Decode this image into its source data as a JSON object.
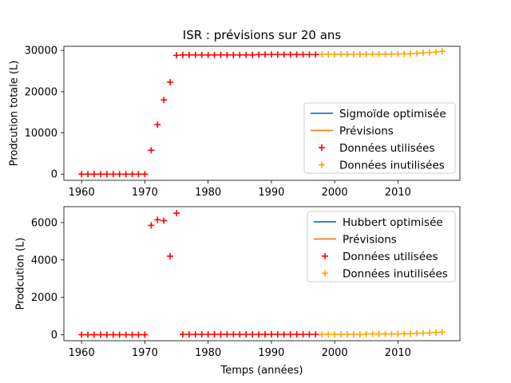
{
  "chart_data": [
    {
      "type": "scatter",
      "title": "ISR : prévisions sur 20 ans",
      "xlabel": "",
      "ylabel": "Prodcution totale (L)",
      "xlim": [
        1957.2,
        2019.8
      ],
      "ylim": [
        -1500,
        31000
      ],
      "xticks": [
        1960,
        1970,
        1980,
        1990,
        2000,
        2010
      ],
      "yticks": [
        0,
        10000,
        20000,
        30000
      ],
      "legend_position": "lower-right",
      "legend": [
        {
          "label": "Sigmoïde optimisée",
          "kind": "line",
          "color": "#1f77b4"
        },
        {
          "label": "Prévisions",
          "kind": "line",
          "color": "#ff7f0e"
        },
        {
          "label": "Données utilisées",
          "kind": "marker",
          "color": "#ff0000"
        },
        {
          "label": "Données inutilisées",
          "kind": "marker",
          "color": "#ffa500"
        }
      ],
      "series": [
        {
          "name": "Données utilisées",
          "color": "#ff0000",
          "x": [
            1960,
            1961,
            1962,
            1963,
            1964,
            1965,
            1966,
            1967,
            1968,
            1969,
            1970,
            1971,
            1972,
            1973,
            1974,
            1975,
            1976,
            1977,
            1978,
            1979,
            1980,
            1981,
            1982,
            1983,
            1984,
            1985,
            1986,
            1987,
            1988,
            1989,
            1990,
            1991,
            1992,
            1993,
            1994,
            1995,
            1996,
            1997
          ],
          "y": [
            0,
            0,
            0,
            0,
            0,
            0,
            0,
            0,
            0,
            0,
            0,
            5800,
            12000,
            18000,
            22300,
            28800,
            28900,
            28900,
            28900,
            28900,
            28900,
            28900,
            28900,
            28900,
            28900,
            28900,
            28900,
            28900,
            29000,
            29000,
            29000,
            29000,
            29000,
            29000,
            29000,
            29000,
            29000,
            29000
          ]
        },
        {
          "name": "Données inutilisées",
          "color": "#ffa500",
          "x": [
            1998,
            1999,
            2000,
            2001,
            2002,
            2003,
            2004,
            2005,
            2006,
            2007,
            2008,
            2009,
            2010,
            2011,
            2012,
            2013,
            2014,
            2015,
            2016,
            2017
          ],
          "y": [
            29050,
            29050,
            29050,
            29050,
            29050,
            29050,
            29100,
            29100,
            29100,
            29100,
            29100,
            29100,
            29150,
            29150,
            29200,
            29300,
            29400,
            29500,
            29600,
            29750
          ]
        }
      ]
    },
    {
      "type": "scatter",
      "title": "",
      "xlabel": "Temps (années)",
      "ylabel": "Prodcution (L)",
      "xlim": [
        1957.2,
        2019.8
      ],
      "ylim": [
        -320,
        6850
      ],
      "xticks": [
        1960,
        1970,
        1980,
        1990,
        2000,
        2010
      ],
      "yticks": [
        0,
        2000,
        4000,
        6000
      ],
      "legend_position": "upper-right",
      "legend": [
        {
          "label": "Hubbert optimisée",
          "kind": "line",
          "color": "#1f77b4"
        },
        {
          "label": "Prévisions",
          "kind": "line",
          "color": "#ff7f0e"
        },
        {
          "label": "Données utilisées",
          "kind": "marker",
          "color": "#ff0000"
        },
        {
          "label": "Données inutilisées",
          "kind": "marker",
          "color": "#ffa500"
        }
      ],
      "series": [
        {
          "name": "Données utilisées",
          "color": "#ff0000",
          "x": [
            1960,
            1961,
            1962,
            1963,
            1964,
            1965,
            1966,
            1967,
            1968,
            1969,
            1970,
            1971,
            1972,
            1973,
            1974,
            1975,
            1976,
            1977,
            1978,
            1979,
            1980,
            1981,
            1982,
            1983,
            1984,
            1985,
            1986,
            1987,
            1988,
            1989,
            1990,
            1991,
            1992,
            1993,
            1994,
            1995,
            1996,
            1997
          ],
          "y": [
            0,
            0,
            0,
            0,
            0,
            0,
            0,
            0,
            0,
            0,
            0,
            5850,
            6150,
            6100,
            4200,
            6500,
            20,
            20,
            20,
            20,
            20,
            20,
            20,
            20,
            20,
            20,
            20,
            20,
            20,
            20,
            20,
            20,
            20,
            20,
            20,
            20,
            20,
            20
          ]
        },
        {
          "name": "Données inutilisées",
          "color": "#ffa500",
          "x": [
            1998,
            1999,
            2000,
            2001,
            2002,
            2003,
            2004,
            2005,
            2006,
            2007,
            2008,
            2009,
            2010,
            2011,
            2012,
            2013,
            2014,
            2015,
            2016,
            2017
          ],
          "y": [
            20,
            20,
            20,
            20,
            20,
            20,
            10,
            40,
            40,
            40,
            40,
            40,
            40,
            50,
            60,
            80,
            90,
            100,
            120,
            140
          ]
        }
      ]
    }
  ]
}
